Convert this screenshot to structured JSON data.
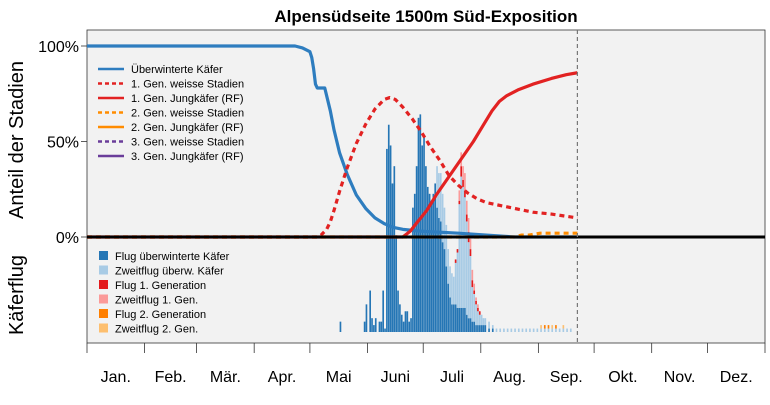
{
  "chart_data": {
    "type": "line",
    "title": "Alpensüdseite 1500m Süd-Exposition",
    "ylabel_top": "Anteil der Stadien",
    "ylabel_bottom": "Käferflug",
    "y_ticks": [
      "100%",
      "50%",
      "0%"
    ],
    "x_domain_days": [
      0,
      365
    ],
    "months": [
      "Jan.",
      "Feb.",
      "Mär.",
      "Apr.",
      "Mai",
      "Juni",
      "Juli",
      "Aug.",
      "Sep.",
      "Okt.",
      "Nov.",
      "Dez."
    ],
    "month_starts": [
      0,
      31,
      59,
      90,
      120,
      151,
      181,
      212,
      243,
      273,
      304,
      334,
      365
    ],
    "today_marker_day": 264,
    "legend_lines": [
      {
        "label": "Überwinterte Käfer",
        "color": "#2e7dbf",
        "dash": "solid"
      },
      {
        "label": "1. Gen. weisse Stadien",
        "color": "#e22222",
        "dash": "dotted"
      },
      {
        "label": "1. Gen. Jungkäfer (RF)",
        "color": "#e22222",
        "dash": "solid"
      },
      {
        "label": "2. Gen. weisse Stadien",
        "color": "#ff8c00",
        "dash": "dotted"
      },
      {
        "label": "2. Gen. Jungkäfer (RF)",
        "color": "#ff8c00",
        "dash": "solid"
      },
      {
        "label": "3. Gen. weisse Stadien",
        "color": "#6a3d9a",
        "dash": "dotted"
      },
      {
        "label": "3. Gen. Jungkäfer (RF)",
        "color": "#6a3d9a",
        "dash": "solid"
      }
    ],
    "legend_flight": [
      {
        "label": "Flug überwinterte Käfer",
        "color": "#2576b5"
      },
      {
        "label": "Zweitflug überw. Käfer",
        "color": "#a8cbe5"
      },
      {
        "label": "Flug 1. Generation",
        "color": "#e31a1c"
      },
      {
        "label": "Zweitflug 1. Gen.",
        "color": "#fb9a99"
      },
      {
        "label": "Flug 2. Generation",
        "color": "#ff7f00"
      },
      {
        "label": "Zweitflug 2. Gen.",
        "color": "#fdbf6f"
      }
    ],
    "series": [
      {
        "name": "Überwinterte Käfer",
        "points": [
          [
            0,
            100
          ],
          [
            100,
            100
          ],
          [
            112,
            100
          ],
          [
            116,
            99
          ],
          [
            118,
            98
          ],
          [
            120,
            97
          ],
          [
            121,
            94
          ],
          [
            122,
            88
          ],
          [
            123,
            80
          ],
          [
            124,
            78
          ],
          [
            128,
            78
          ],
          [
            129,
            74
          ],
          [
            131,
            66
          ],
          [
            133,
            56
          ],
          [
            136,
            44
          ],
          [
            140,
            33
          ],
          [
            145,
            22
          ],
          [
            150,
            15
          ],
          [
            155,
            10
          ],
          [
            160,
            7
          ],
          [
            165,
            5
          ],
          [
            170,
            4
          ],
          [
            180,
            3
          ],
          [
            200,
            2
          ],
          [
            215,
            1
          ],
          [
            230,
            0
          ],
          [
            264,
            0
          ]
        ]
      },
      {
        "name": "1. Gen. weisse Stadien",
        "points": [
          [
            0,
            0
          ],
          [
            124,
            0
          ],
          [
            126,
            1
          ],
          [
            129,
            4
          ],
          [
            131,
            8
          ],
          [
            133,
            14
          ],
          [
            136,
            24
          ],
          [
            140,
            36
          ],
          [
            145,
            49
          ],
          [
            150,
            59
          ],
          [
            155,
            67
          ],
          [
            160,
            72
          ],
          [
            163,
            73
          ],
          [
            166,
            72
          ],
          [
            170,
            68
          ],
          [
            175,
            62
          ],
          [
            180,
            55
          ],
          [
            185,
            47
          ],
          [
            190,
            40
          ],
          [
            195,
            32
          ],
          [
            200,
            27
          ],
          [
            205,
            23
          ],
          [
            210,
            20
          ],
          [
            215,
            18
          ],
          [
            220,
            17
          ],
          [
            230,
            15
          ],
          [
            240,
            13
          ],
          [
            250,
            12
          ],
          [
            257,
            11
          ],
          [
            264,
            10
          ]
        ]
      },
      {
        "name": "1. Gen. Jungkäfer (RF)",
        "points": [
          [
            0,
            0
          ],
          [
            170,
            0
          ],
          [
            174,
            3
          ],
          [
            178,
            8
          ],
          [
            183,
            14
          ],
          [
            188,
            22
          ],
          [
            193,
            29
          ],
          [
            198,
            36
          ],
          [
            203,
            43
          ],
          [
            208,
            50
          ],
          [
            213,
            58
          ],
          [
            218,
            66
          ],
          [
            222,
            71
          ],
          [
            226,
            74
          ],
          [
            232,
            77
          ],
          [
            240,
            80
          ],
          [
            250,
            83
          ],
          [
            258,
            85
          ],
          [
            264,
            86
          ]
        ]
      },
      {
        "name": "2. Gen. weisse Stadien",
        "points": [
          [
            0,
            0
          ],
          [
            230,
            0
          ],
          [
            234,
            1
          ],
          [
            238,
            1
          ],
          [
            244,
            2
          ],
          [
            252,
            2
          ],
          [
            260,
            2
          ],
          [
            264,
            2
          ]
        ]
      }
    ],
    "flight_bars": {
      "ylim": [
        0,
        55
      ],
      "overwintered": [
        [
          136,
          3
        ],
        [
          149,
          3
        ],
        [
          150,
          8
        ],
        [
          152,
          12
        ],
        [
          153,
          4
        ],
        [
          154,
          2
        ],
        [
          155,
          4
        ],
        [
          157,
          3
        ],
        [
          158,
          3
        ],
        [
          159,
          12
        ],
        [
          160,
          1
        ],
        [
          161,
          53
        ],
        [
          162,
          60
        ],
        [
          163,
          54
        ],
        [
          164,
          43
        ],
        [
          165,
          48
        ],
        [
          166,
          28
        ],
        [
          167,
          12
        ],
        [
          168,
          8
        ],
        [
          169,
          5
        ],
        [
          170,
          3
        ],
        [
          171,
          6
        ],
        [
          172,
          6
        ],
        [
          173,
          3
        ],
        [
          174,
          4
        ],
        [
          175,
          36
        ],
        [
          176,
          40
        ],
        [
          177,
          48
        ],
        [
          178,
          62
        ],
        [
          179,
          63
        ],
        [
          180,
          54
        ],
        [
          181,
          57
        ],
        [
          182,
          48
        ],
        [
          183,
          42
        ],
        [
          184,
          40
        ],
        [
          185,
          38
        ],
        [
          186,
          40
        ],
        [
          187,
          43
        ],
        [
          188,
          36
        ],
        [
          189,
          33
        ],
        [
          190,
          32
        ],
        [
          191,
          26
        ],
        [
          192,
          24
        ],
        [
          193,
          19
        ],
        [
          194,
          14
        ],
        [
          195,
          10
        ],
        [
          196,
          8
        ],
        [
          197,
          8
        ],
        [
          198,
          8
        ],
        [
          199,
          7
        ],
        [
          200,
          7
        ],
        [
          201,
          7
        ],
        [
          202,
          7
        ],
        [
          203,
          7
        ],
        [
          204,
          5
        ],
        [
          205,
          4
        ],
        [
          206,
          4
        ],
        [
          207,
          3
        ],
        [
          208,
          3
        ],
        [
          209,
          2
        ],
        [
          210,
          2
        ],
        [
          211,
          2
        ],
        [
          212,
          2
        ],
        [
          213,
          2
        ],
        [
          214,
          2
        ],
        [
          216,
          1
        ],
        [
          218,
          1
        ]
      ],
      "overwintered_second": [
        [
          188,
          12
        ],
        [
          189,
          13
        ],
        [
          190,
          14
        ],
        [
          191,
          14
        ],
        [
          192,
          12
        ],
        [
          193,
          12
        ],
        [
          194,
          10
        ],
        [
          195,
          9
        ],
        [
          196,
          9
        ],
        [
          197,
          8
        ],
        [
          198,
          12
        ],
        [
          199,
          16
        ],
        [
          200,
          30
        ],
        [
          201,
          38
        ],
        [
          202,
          35
        ],
        [
          203,
          32
        ],
        [
          204,
          27
        ],
        [
          205,
          22
        ],
        [
          206,
          18
        ],
        [
          207,
          10
        ],
        [
          208,
          8
        ],
        [
          209,
          6
        ],
        [
          210,
          4
        ],
        [
          211,
          3
        ],
        [
          212,
          3
        ],
        [
          213,
          2
        ],
        [
          214,
          2
        ],
        [
          216,
          2
        ],
        [
          218,
          1
        ],
        [
          220,
          1
        ],
        [
          222,
          1
        ],
        [
          224,
          1
        ],
        [
          226,
          1
        ],
        [
          228,
          1
        ],
        [
          230,
          1
        ],
        [
          232,
          1
        ],
        [
          234,
          1
        ],
        [
          236,
          1
        ],
        [
          238,
          1
        ],
        [
          240,
          1
        ],
        [
          242,
          1
        ],
        [
          244,
          1
        ],
        [
          246,
          1
        ],
        [
          248,
          1
        ],
        [
          250,
          1
        ],
        [
          252,
          1
        ],
        [
          254,
          1
        ],
        [
          256,
          1
        ],
        [
          258,
          1
        ],
        [
          260,
          1
        ]
      ],
      "gen1": [
        [
          198,
          1
        ],
        [
          199,
          1
        ],
        [
          200,
          1
        ],
        [
          201,
          3
        ],
        [
          202,
          2
        ],
        [
          203,
          2
        ],
        [
          204,
          2
        ],
        [
          205,
          3
        ],
        [
          206,
          2
        ],
        [
          207,
          2
        ],
        [
          208,
          1
        ],
        [
          209,
          1
        ],
        [
          210,
          1
        ],
        [
          211,
          1
        ]
      ],
      "gen1_second": [
        [
          200,
          3
        ],
        [
          201,
          4
        ],
        [
          202,
          4
        ],
        [
          203,
          5
        ],
        [
          204,
          4
        ],
        [
          205,
          4
        ],
        [
          206,
          3
        ],
        [
          207,
          3
        ],
        [
          208,
          2
        ],
        [
          209,
          1
        ],
        [
          210,
          1
        ]
      ],
      "gen2": [
        [
          246,
          1
        ],
        [
          248,
          1
        ],
        [
          252,
          1
        ]
      ],
      "gen2_second": [
        [
          244,
          1
        ],
        [
          250,
          1
        ],
        [
          256,
          1
        ]
      ]
    }
  }
}
